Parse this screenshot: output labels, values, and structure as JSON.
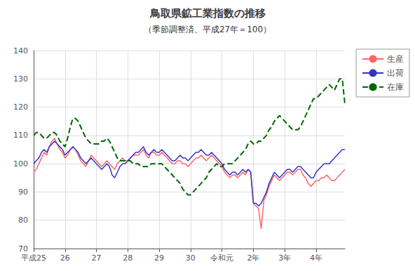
{
  "chart_data": {
    "type": "line",
    "title": "鳥取県鉱工業指数の推移",
    "subtitle": "（季節調整済、平成27年＝100）",
    "categories": [
      "平成25",
      null,
      null,
      null,
      null,
      null,
      null,
      null,
      null,
      null,
      null,
      null,
      "26",
      null,
      null,
      null,
      null,
      null,
      null,
      null,
      null,
      null,
      null,
      null,
      "27",
      null,
      null,
      null,
      null,
      null,
      null,
      null,
      null,
      null,
      null,
      null,
      "28",
      null,
      null,
      null,
      null,
      null,
      null,
      null,
      null,
      null,
      null,
      null,
      "29",
      null,
      null,
      null,
      null,
      null,
      null,
      null,
      null,
      null,
      null,
      null,
      "30",
      null,
      null,
      null,
      null,
      null,
      null,
      null,
      null,
      null,
      null,
      null,
      "令和元",
      null,
      null,
      null,
      null,
      null,
      null,
      null,
      null,
      null,
      null,
      null,
      "2年",
      null,
      null,
      null,
      null,
      null,
      null,
      null,
      null,
      null,
      null,
      null,
      "3年",
      null,
      null,
      null,
      null,
      null,
      null,
      null,
      null,
      null,
      null,
      null,
      "4年",
      null,
      null,
      null,
      null,
      null,
      null,
      null,
      null,
      null,
      null,
      null
    ],
    "ylim": [
      70,
      140
    ],
    "yticks": [
      70,
      80,
      90,
      100,
      110,
      120,
      130,
      140
    ],
    "grid": true,
    "legend": "upper right",
    "series": [
      {
        "name": "生産",
        "color": "#ff6666",
        "line_style": "solid",
        "values": [
          97,
          98,
          100,
          102,
          104,
          103,
          106,
          108,
          109,
          107,
          105,
          104,
          102,
          103,
          105,
          106,
          105,
          103,
          101,
          100,
          99,
          101,
          103,
          102,
          101,
          100,
          99,
          100,
          101,
          100,
          99,
          98,
          100,
          101,
          102,
          101,
          101,
          102,
          103,
          103,
          103,
          104,
          105,
          103,
          102,
          104,
          104,
          103,
          103,
          104,
          103,
          102,
          101,
          100,
          100,
          101,
          101,
          100,
          100,
          99,
          100,
          101,
          102,
          102,
          103,
          102,
          101,
          102,
          103,
          102,
          101,
          100,
          99,
          97,
          96,
          95,
          96,
          96,
          95,
          96,
          97,
          96,
          98,
          97,
          86,
          85,
          84,
          77,
          87,
          89,
          92,
          94,
          96,
          95,
          94,
          95,
          96,
          97,
          97,
          96,
          97,
          98,
          98,
          96,
          95,
          93,
          92,
          93,
          94,
          94,
          95,
          95,
          96,
          95,
          94,
          94,
          95,
          96,
          97,
          98
        ]
      },
      {
        "name": "出荷",
        "color": "#3333cc",
        "line_style": "solid",
        "values": [
          100,
          101,
          102,
          104,
          105,
          104,
          106,
          107,
          108,
          107,
          106,
          105,
          103,
          104,
          105,
          106,
          105,
          104,
          102,
          101,
          100,
          101,
          102,
          101,
          100,
          99,
          98,
          99,
          100,
          99,
          96,
          95,
          97,
          99,
          100,
          100,
          101,
          102,
          103,
          104,
          104,
          105,
          106,
          104,
          103,
          104,
          105,
          104,
          104,
          105,
          104,
          103,
          102,
          101,
          101,
          102,
          103,
          102,
          102,
          101,
          102,
          103,
          104,
          104,
          105,
          104,
          103,
          103,
          104,
          103,
          102,
          101,
          100,
          98,
          97,
          96,
          97,
          97,
          96,
          97,
          98,
          97,
          98,
          97,
          86,
          86,
          85,
          86,
          88,
          90,
          93,
          95,
          97,
          96,
          95,
          96,
          97,
          98,
          98,
          97,
          98,
          99,
          99,
          98,
          97,
          96,
          95,
          95,
          97,
          98,
          99,
          100,
          100,
          100,
          101,
          102,
          103,
          104,
          105,
          105
        ]
      },
      {
        "name": "在庫",
        "color": "#006600",
        "line_style": "dashed",
        "values": [
          110,
          111,
          111,
          110,
          109,
          109,
          110,
          111,
          111,
          110,
          108,
          107,
          106,
          109,
          113,
          116,
          116,
          115,
          113,
          111,
          109,
          108,
          107,
          107,
          107,
          107,
          108,
          108,
          109,
          108,
          106,
          104,
          102,
          101,
          101,
          101,
          101,
          101,
          100,
          100,
          100,
          99,
          99,
          99,
          99,
          100,
          100,
          100,
          100,
          100,
          99,
          98,
          97,
          96,
          95,
          94,
          93,
          91,
          90,
          89,
          89,
          90,
          91,
          92,
          93,
          94,
          95,
          97,
          98,
          99,
          100,
          99,
          99,
          100,
          100,
          100,
          100,
          101,
          102,
          103,
          104,
          105,
          107,
          108,
          107,
          107,
          108,
          108,
          109,
          110,
          112,
          113,
          115,
          116,
          117,
          116,
          115,
          114,
          113,
          112,
          112,
          112,
          113,
          115,
          117,
          119,
          121,
          123,
          123,
          124,
          125,
          126,
          127,
          128,
          127,
          126,
          128,
          130,
          130,
          121
        ]
      }
    ]
  }
}
